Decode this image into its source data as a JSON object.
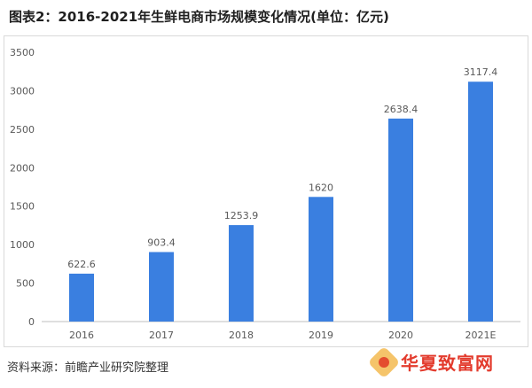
{
  "title": "图表2：2016-2021年生鲜电商市场规模变化情况(单位：亿元)",
  "source": "资料来源：前瞻产业研究院整理",
  "watermark_logo_text": "华夏致富网",
  "colors": {
    "bar": "#3a7fe0",
    "axis": "#bfbfbf",
    "text": "#595959"
  },
  "chart_data": {
    "type": "bar",
    "categories": [
      "2016",
      "2017",
      "2018",
      "2019",
      "2020",
      "2021E"
    ],
    "values": [
      622.6,
      903.4,
      1253.9,
      1620,
      2638.4,
      3117.4
    ],
    "data_labels": [
      "622.6",
      "903.4",
      "1253.9",
      "1620",
      "2638.4",
      "3117.4"
    ],
    "yticks": [
      "0",
      "500",
      "1000",
      "1500",
      "2000",
      "2500",
      "3000",
      "3500"
    ],
    "ylim": [
      0,
      3500
    ],
    "grid": false,
    "legend": "none"
  }
}
